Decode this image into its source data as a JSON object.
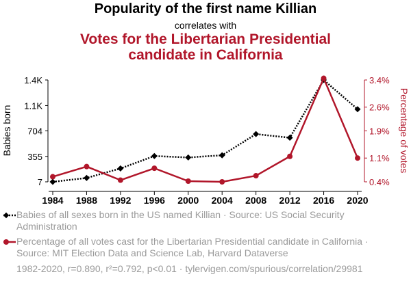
{
  "header": {
    "title": "Popularity of the first name Killian",
    "connector": "correlates with",
    "subtitle": "Votes for the Libertarian Presidential candidate in California"
  },
  "chart_data": {
    "type": "line",
    "x": [
      1984,
      1988,
      1992,
      1996,
      2000,
      2004,
      2008,
      2012,
      2016,
      2020
    ],
    "series": [
      {
        "name": "Babies of all sexes born in the US named Killian · Source: US Social Security Administration",
        "axis": "left",
        "color": "#000000",
        "style": "dotted",
        "marker": "diamond",
        "values": [
          7,
          60,
          190,
          360,
          340,
          370,
          660,
          610,
          1400,
          1000
        ]
      },
      {
        "name": "Percentage of all votes cast for the Libertarian Presidential candidate in California · Source: MIT Election Data and Science Lab, Harvard Dataverse",
        "axis": "right",
        "color": "#b1162a",
        "style": "solid",
        "marker": "circle",
        "values": [
          0.55,
          0.85,
          0.45,
          0.8,
          0.42,
          0.4,
          0.58,
          1.15,
          3.45,
          1.1
        ]
      }
    ],
    "xticks": [
      "1984",
      "1988",
      "1992",
      "1996",
      "2000",
      "2004",
      "2008",
      "2012",
      "2016",
      "2020"
    ],
    "left_axis": {
      "label": "Babies born",
      "ticks": [
        7,
        355,
        704,
        1050,
        1400
      ],
      "tick_labels": [
        "7",
        "355",
        "704",
        "1.1K",
        "1.4K"
      ],
      "range": [
        7,
        1400
      ]
    },
    "right_axis": {
      "label": "Percentage of votes",
      "ticks": [
        0.4,
        1.1,
        1.9,
        2.6,
        3.4
      ],
      "tick_labels": [
        "0.4%",
        "1.1%",
        "1.9%",
        "2.6%",
        "3.4%"
      ],
      "range": [
        0.4,
        3.4
      ],
      "color": "#b1162a"
    },
    "grid": false
  },
  "legend": {
    "entry1": "Babies of all sexes born in the US named Killian · Source: US Social Security Administration",
    "entry2": "Percentage of all votes cast for the Libertarian Presidential candidate in California · Source: MIT Election Data and Science Lab, Harvard Dataverse"
  },
  "footer": {
    "stats": "1982-2020, r=0.890, r²=0.792, p<0.01 · tylervigen.com/spurious/correlation/29981"
  }
}
